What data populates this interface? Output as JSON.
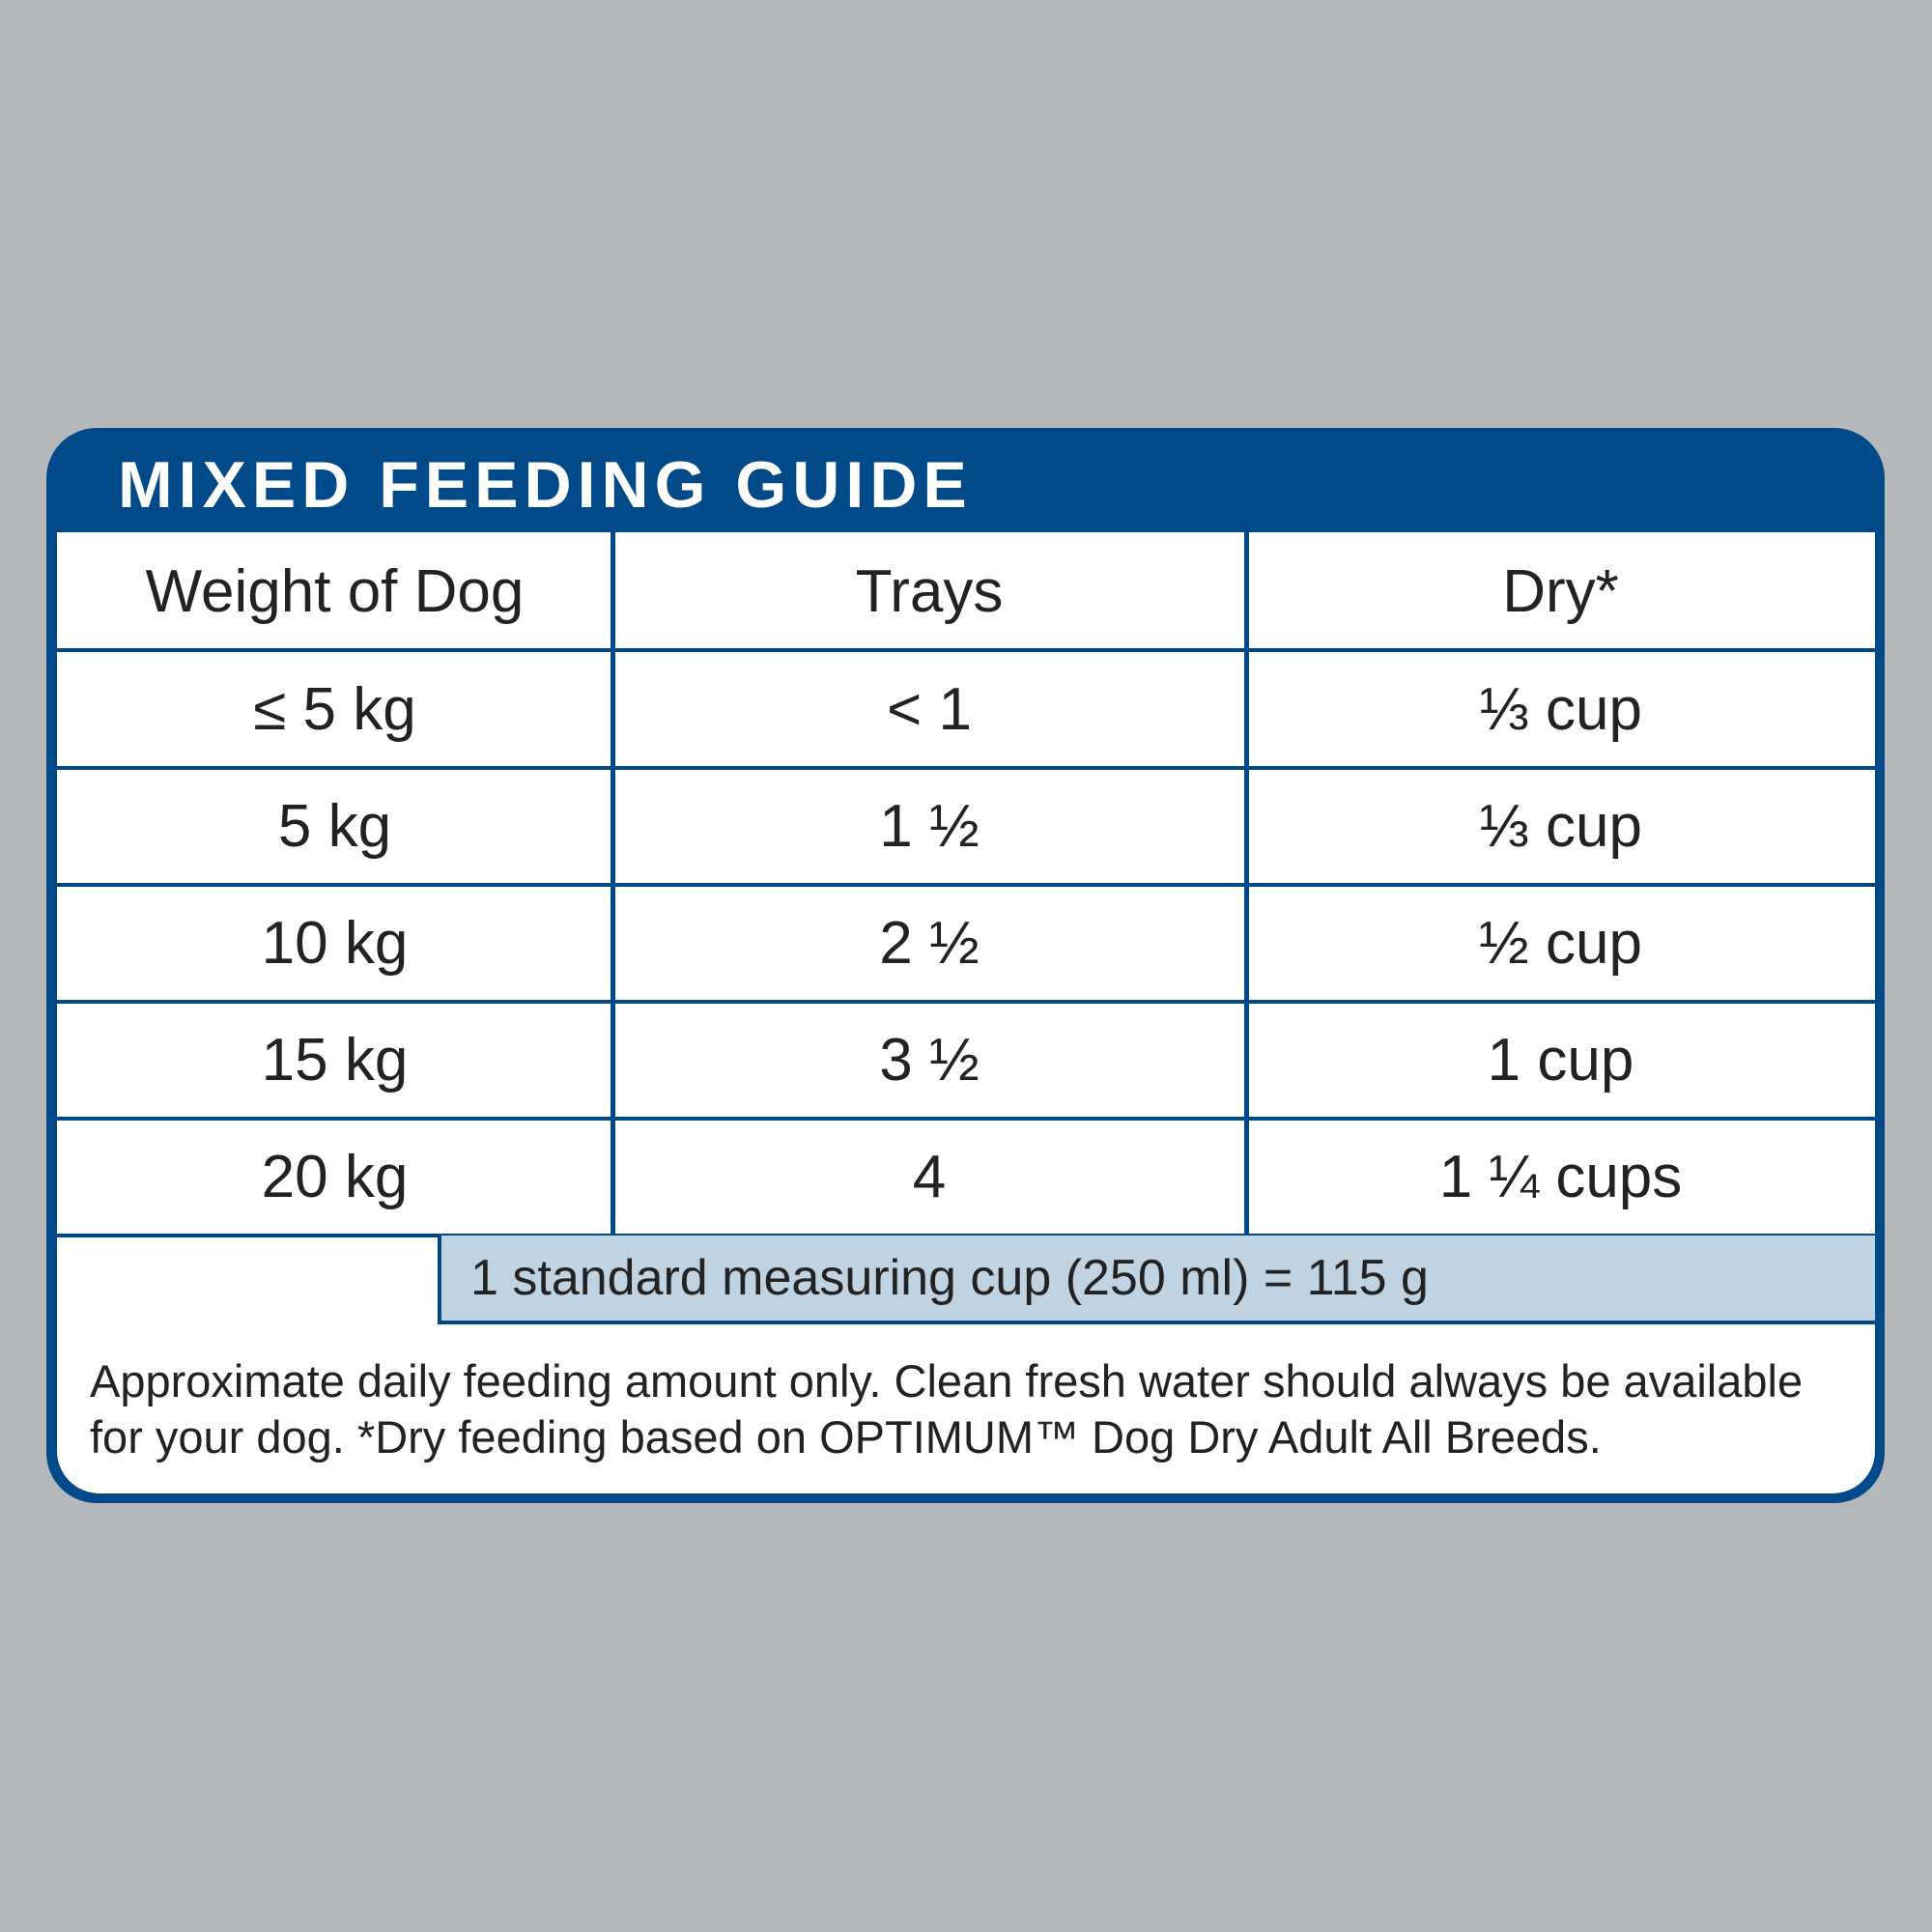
{
  "header": {
    "title": "MIXED FEEDING GUIDE"
  },
  "table": {
    "columns": [
      "Weight of Dog",
      "Trays",
      "Dry*"
    ],
    "rows": [
      [
        "≤ 5 kg",
        "< 1",
        "⅓ cup"
      ],
      [
        "5 kg",
        "1 ½",
        "⅓ cup"
      ],
      [
        "10 kg",
        "2 ½",
        "½ cup"
      ],
      [
        "15 kg",
        "3 ½",
        "1 cup"
      ],
      [
        "20 kg",
        "4",
        "1 ¼ cups"
      ]
    ]
  },
  "note": "1 standard measuring cup (250 ml) = 115 g",
  "footnote": {
    "lines": [
      "Approximate daily feeding amount only. Clean fresh water should always be available",
      "for your dog.  *Dry feeding based on OPTIMUM™ Dog Dry Adult All Breeds."
    ]
  }
}
